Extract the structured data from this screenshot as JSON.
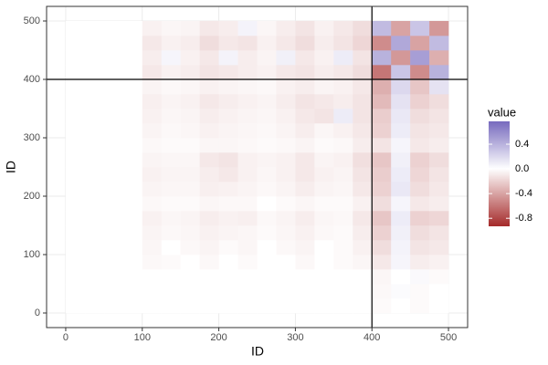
{
  "chart_data": {
    "type": "heatmap",
    "x_label": "ID",
    "y_label": "ID",
    "legend_title": "value",
    "xlim": [
      -25,
      525
    ],
    "ylim": [
      -25,
      525
    ],
    "xticks": [
      0,
      100,
      200,
      300,
      400,
      500
    ],
    "yticks": [
      0,
      100,
      200,
      300,
      400,
      500
    ],
    "grid": true,
    "vline": 400,
    "hline": 400,
    "color_low": "#a52a2a",
    "color_mid": "#ffffff",
    "color_high": "#5b4bb0",
    "color_limits": [
      -0.93,
      0.77
    ],
    "legend_ticks": [
      0.4,
      {
        "value": 0,
        "label": "0.0"
      },
      -0.4,
      -0.8
    ],
    "x_bins": [
      0,
      25,
      50,
      75,
      100,
      125,
      150,
      175,
      200,
      225,
      250,
      275,
      300,
      325,
      350,
      375,
      400,
      425,
      450,
      475,
      500
    ],
    "y_bins": [
      0,
      25,
      50,
      75,
      100,
      125,
      150,
      175,
      200,
      225,
      250,
      275,
      300,
      325,
      350,
      375,
      400,
      425,
      450,
      475,
      500
    ],
    "values": [
      [
        0,
        0,
        0,
        0,
        0,
        0,
        0,
        0,
        0,
        0,
        0,
        0,
        0,
        0,
        0,
        0,
        -0.02,
        0,
        -0.02,
        0
      ],
      [
        0,
        0,
        0,
        0,
        0,
        0,
        0,
        0,
        0,
        0,
        0,
        0,
        0,
        0,
        0,
        0,
        -0.03,
        0.02,
        -0.02,
        0
      ],
      [
        0,
        0,
        0,
        0,
        0,
        0,
        0,
        0,
        0,
        0,
        0,
        0,
        0,
        0,
        0,
        0,
        -0.04,
        0,
        0.03,
        -0.02
      ],
      [
        0,
        0,
        0,
        0,
        -0.03,
        -0.02,
        0,
        -0.03,
        0,
        -0.02,
        0,
        0,
        -0.03,
        0,
        -0.02,
        -0.04,
        -0.1,
        0.05,
        -0.08,
        -0.06
      ],
      [
        0,
        0,
        0,
        0,
        -0.04,
        0,
        -0.03,
        -0.05,
        -0.02,
        -0.04,
        0,
        -0.03,
        -0.05,
        0,
        -0.02,
        -0.06,
        -0.15,
        0.06,
        -0.12,
        -0.1
      ],
      [
        0,
        0,
        0,
        0,
        -0.05,
        -0.03,
        -0.04,
        -0.06,
        -0.05,
        -0.04,
        -0.02,
        -0.04,
        -0.06,
        -0.03,
        -0.02,
        -0.08,
        -0.2,
        0.08,
        -0.15,
        -0.12
      ],
      [
        0,
        0,
        0,
        0,
        -0.06,
        -0.04,
        -0.05,
        -0.08,
        -0.06,
        -0.07,
        -0.03,
        -0.05,
        -0.08,
        -0.04,
        -0.03,
        -0.1,
        -0.25,
        0.1,
        -0.2,
        -0.18
      ],
      [
        0,
        0,
        0,
        0,
        -0.03,
        -0.02,
        -0.02,
        -0.04,
        -0.03,
        -0.03,
        0,
        -0.02,
        -0.04,
        -0.02,
        -0.02,
        -0.06,
        -0.15,
        0.05,
        -0.1,
        -0.08
      ],
      [
        0,
        0,
        0,
        0,
        -0.05,
        -0.04,
        -0.04,
        -0.07,
        -0.06,
        -0.05,
        -0.03,
        -0.05,
        -0.08,
        -0.05,
        -0.04,
        -0.1,
        -0.2,
        0.12,
        -0.15,
        -0.1
      ],
      [
        0,
        0,
        0,
        0,
        -0.06,
        -0.05,
        -0.05,
        -0.08,
        -0.1,
        -0.06,
        -0.04,
        -0.06,
        -0.1,
        -0.06,
        -0.05,
        -0.12,
        -0.22,
        0.1,
        -0.18,
        -0.12
      ],
      [
        0,
        0,
        0,
        0,
        -0.05,
        -0.04,
        -0.04,
        -0.1,
        -0.12,
        -0.06,
        -0.05,
        -0.06,
        -0.1,
        -0.05,
        -0.06,
        -0.14,
        -0.25,
        0.08,
        -0.2,
        -0.15
      ],
      [
        0,
        0,
        0,
        0,
        -0.03,
        -0.02,
        -0.02,
        -0.04,
        -0.04,
        -0.03,
        -0.02,
        -0.03,
        -0.05,
        -0.02,
        -0.03,
        -0.08,
        -0.12,
        0.05,
        -0.1,
        -0.08
      ],
      [
        0,
        0,
        0,
        0,
        -0.05,
        -0.03,
        -0.04,
        -0.06,
        -0.05,
        -0.04,
        -0.03,
        -0.05,
        -0.08,
        -0.04,
        -0.06,
        -0.1,
        -0.2,
        0.1,
        -0.12,
        -0.1
      ],
      [
        0,
        0,
        0,
        0,
        -0.06,
        -0.04,
        -0.05,
        -0.08,
        -0.06,
        -0.05,
        -0.04,
        -0.06,
        -0.1,
        -0.12,
        0.1,
        -0.12,
        -0.22,
        0.12,
        -0.15,
        -0.12
      ],
      [
        0,
        0,
        0,
        0,
        -0.07,
        -0.05,
        -0.06,
        -0.1,
        -0.08,
        -0.06,
        -0.05,
        -0.08,
        -0.12,
        -0.1,
        -0.08,
        -0.12,
        -0.3,
        0.15,
        -0.2,
        -0.15
      ],
      [
        0,
        0,
        0,
        0,
        -0.05,
        -0.03,
        -0.04,
        -0.06,
        -0.05,
        -0.04,
        -0.03,
        -0.06,
        -0.08,
        -0.05,
        -0.06,
        -0.1,
        -0.35,
        0.2,
        -0.25,
        0.15
      ],
      [
        0,
        0,
        0,
        0,
        -0.1,
        -0.06,
        -0.08,
        -0.12,
        -0.1,
        -0.08,
        -0.06,
        -0.1,
        -0.12,
        -0.08,
        -0.1,
        -0.15,
        -0.6,
        0.3,
        -0.5,
        0.4
      ],
      [
        0,
        0,
        0,
        0,
        -0.08,
        0.05,
        -0.06,
        -0.1,
        0.06,
        -0.08,
        -0.05,
        0.08,
        -0.1,
        -0.06,
        0.1,
        -0.12,
        0.4,
        -0.45,
        0.5,
        -0.35
      ],
      [
        0,
        0,
        0,
        0,
        -0.1,
        -0.06,
        -0.08,
        -0.15,
        -0.1,
        -0.12,
        -0.06,
        -0.1,
        -0.15,
        -0.08,
        -0.12,
        -0.18,
        -0.5,
        0.45,
        -0.4,
        0.35
      ],
      [
        0,
        0,
        0,
        0,
        -0.06,
        -0.04,
        -0.05,
        -0.1,
        -0.08,
        0.06,
        -0.04,
        -0.08,
        -0.12,
        -0.06,
        -0.1,
        -0.15,
        0.35,
        -0.4,
        0.3,
        -0.45
      ]
    ]
  }
}
